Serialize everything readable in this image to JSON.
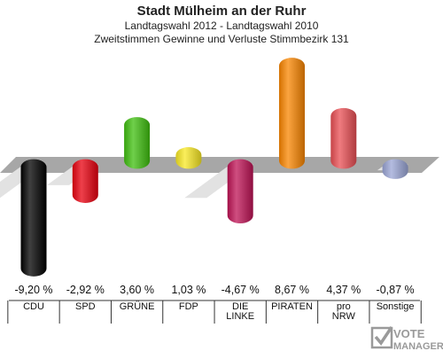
{
  "title": "Stadt Mülheim an der Ruhr",
  "subtitle1": "Landtagswahl 2012 - Landtagswahl 2010",
  "subtitle2": "Zweitstimmen Gewinne und Verluste Stimmbezirk 131",
  "chart_data": {
    "type": "bar",
    "title": "Stadt Mülheim an der Ruhr",
    "subtitle": "Landtagswahl 2012 - Landtagswahl 2010 / Zweitstimmen Gewinne und Verluste Stimmbezirk 131",
    "categories": [
      [
        "CDU"
      ],
      [
        "SPD"
      ],
      [
        "GRÜNE"
      ],
      [
        "FDP"
      ],
      [
        "DIE",
        "LINKE"
      ],
      [
        "PIRATEN"
      ],
      [
        "pro",
        "NRW"
      ],
      [
        "Sonstige"
      ]
    ],
    "values": [
      -9.2,
      -2.92,
      3.6,
      1.03,
      -4.67,
      8.67,
      4.37,
      -0.87
    ],
    "value_labels": [
      "-9,20 %",
      "-2,92 %",
      "3,60 %",
      "1,03 %",
      "-4,67 %",
      "8,67 %",
      "4,37 %",
      "-0,87 %"
    ],
    "colors": [
      "#000000",
      "#e8000f",
      "#3fbf0f",
      "#f8e824",
      "#bf1355",
      "#f98500",
      "#e94f54",
      "#9ba6d6"
    ],
    "units": "%",
    "grid": false,
    "legend": "none"
  },
  "watermark": {
    "line1": "VOTE",
    "line2": "MANAGER"
  }
}
